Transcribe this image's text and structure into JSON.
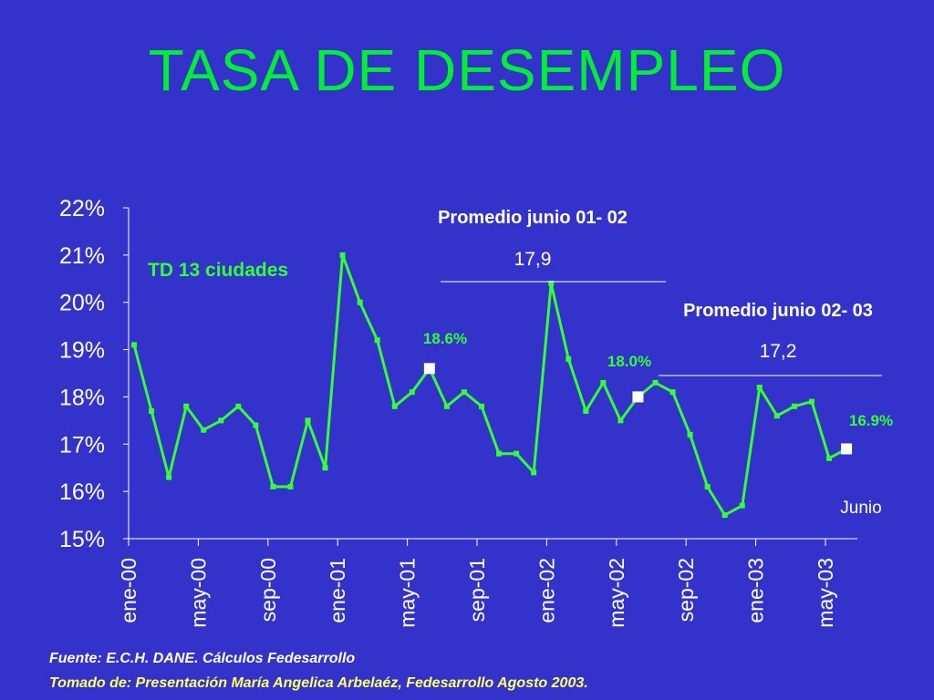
{
  "title": "TASA DE DESEMPLEO",
  "sources": {
    "fuente": "Fuente: E.C.H. DANE.  Cálculos Fedesarrollo",
    "tomado": "Tomado de: Presentación María Angelica Arbelaéz, Fedesarrollo Agosto  2003."
  },
  "colors": {
    "background": "#3333cc",
    "line": "#33ff33",
    "title": "#00ee33",
    "axis_text": "#ffffff",
    "label_green": "#33ff33",
    "marker_white": "#ffffff"
  },
  "chart_data": {
    "type": "line",
    "series_label": "TD 13 ciudades",
    "x_tick_labels": [
      "ene-00",
      "may-00",
      "sep-00",
      "ene-01",
      "may-01",
      "sep-01",
      "ene-02",
      "may-02",
      "sep-02",
      "ene-03",
      "may-03"
    ],
    "y_tick_labels": [
      "22%",
      "21%",
      "20%",
      "19%",
      "18%",
      "17%",
      "16%",
      "15%"
    ],
    "ylim": [
      15,
      22
    ],
    "x_range_months": [
      "ene-00",
      "jul-03"
    ],
    "series": [
      {
        "values": [
          19.1,
          17.7,
          16.3,
          17.8,
          17.3,
          17.5,
          17.8,
          17.4,
          16.1,
          16.1,
          17.5,
          16.5,
          21.0,
          20.0,
          19.2,
          17.8,
          18.1,
          18.6,
          17.8,
          18.1,
          17.8,
          16.8,
          16.8,
          16.4,
          20.4,
          18.8,
          17.7,
          18.3,
          17.5,
          18.0,
          18.3,
          18.1,
          17.2,
          16.1,
          15.5,
          15.7,
          18.2,
          17.6,
          17.8,
          17.9,
          16.7,
          16.9
        ]
      }
    ],
    "highlight_points": [
      {
        "month_index": 17,
        "value": 18.6,
        "label": "18.6%"
      },
      {
        "month_index": 29,
        "value": 18.0,
        "label": "18.0%"
      },
      {
        "month_index": 41,
        "value": 16.9,
        "label": "16.9%"
      }
    ],
    "annotations": [
      {
        "label": "Promedio junio 01- 02",
        "value": "17,9",
        "start_month": 18,
        "end_month": 31
      },
      {
        "label": "Promedio junio 02- 03",
        "value": "17,2",
        "start_month": 30,
        "end_month": 43
      }
    ],
    "end_label": "Junio",
    "grid": false
  }
}
